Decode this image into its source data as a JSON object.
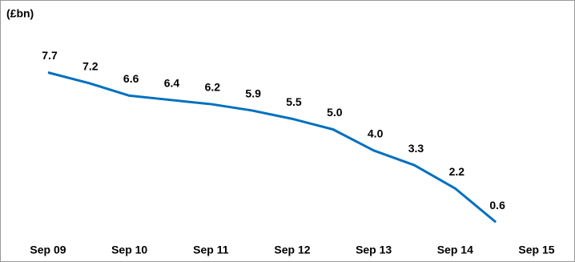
{
  "chart_data": {
    "type": "line",
    "title": "(£bn)",
    "categories": [
      "Sep 09",
      null,
      "Sep 10",
      null,
      "Sep 11",
      null,
      "Sep 12",
      null,
      "Sep 13",
      null,
      "Sep 14",
      null,
      "Sep 15"
    ],
    "values": [
      7.7,
      7.2,
      6.6,
      6.4,
      6.2,
      5.9,
      5.5,
      5.0,
      4.0,
      3.3,
      2.2,
      0.6,
      null
    ],
    "value_labels": [
      "7.7",
      "7.2",
      "6.6",
      "6.4",
      "6.2",
      "5.9",
      "5.5",
      "5.0",
      "4.0",
      "3.3",
      "2.2",
      "0.6",
      null
    ],
    "color": "#0070c0",
    "ylim": [
      0,
      10
    ]
  }
}
